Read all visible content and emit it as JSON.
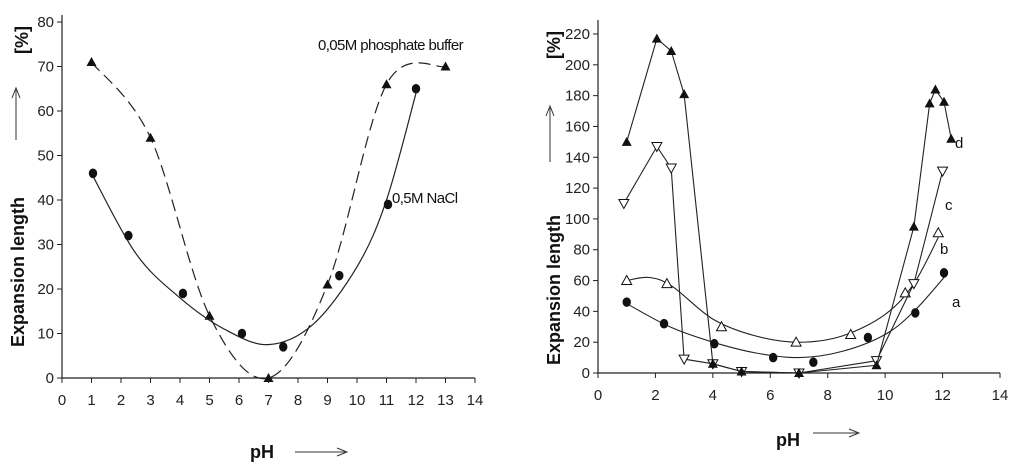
{
  "chart_data": [
    {
      "type": "line",
      "xlabel": "pH",
      "ylabel": "Expansion length",
      "yunit": "[%]",
      "xlim": [
        0,
        14
      ],
      "ylim": [
        0,
        80
      ],
      "xticks": [
        "0",
        "1",
        "2",
        "3",
        "4",
        "5",
        "6",
        "7",
        "8",
        "9",
        "10",
        "11",
        "12",
        "13",
        "14"
      ],
      "yticks": [
        "0",
        "10",
        "20",
        "30",
        "40",
        "50",
        "60",
        "70",
        "80"
      ],
      "grid": false,
      "series": [
        {
          "name": "0,05M phosphate buffer",
          "marker": "triangle-filled",
          "line_style": "dashed",
          "x": [
            1,
            3,
            5,
            7,
            9,
            11,
            13
          ],
          "y": [
            71,
            54,
            14,
            0,
            21,
            66,
            70
          ]
        },
        {
          "name": "0,5M NaCl",
          "marker": "circle-filled",
          "line_style": "solid",
          "x": [
            1.05,
            2.25,
            4.1,
            6.1,
            7.5,
            9.4,
            11.05,
            12.0
          ],
          "y": [
            46,
            32,
            19,
            10,
            7,
            23,
            39,
            65
          ]
        }
      ]
    },
    {
      "type": "line",
      "xlabel": "pH",
      "ylabel": "Expansion length",
      "yunit": "[%]",
      "xlim": [
        0,
        14
      ],
      "ylim": [
        0,
        220
      ],
      "xticks": [
        "0",
        "2",
        "4",
        "6",
        "8",
        "10",
        "12",
        "14"
      ],
      "yticks": [
        "0",
        "20",
        "40",
        "60",
        "80",
        "100",
        "120",
        "140",
        "160",
        "180",
        "200",
        "220"
      ],
      "grid": false,
      "series": [
        {
          "name": "a",
          "marker": "circle-filled",
          "x": [
            1.0,
            2.3,
            4.05,
            6.1,
            7.5,
            9.4,
            11.05,
            12.05
          ],
          "y": [
            46,
            32,
            19,
            10,
            7,
            23,
            39,
            65
          ]
        },
        {
          "name": "b",
          "marker": "triangle-open",
          "x": [
            1.0,
            2.4,
            4.3,
            6.9,
            8.8,
            10.7,
            11.85
          ],
          "y": [
            60,
            58,
            30,
            20,
            25,
            52,
            91
          ]
        },
        {
          "name": "c",
          "marker": "triangle-down-open",
          "x": [
            0.9,
            2.05,
            2.55,
            3.0,
            4.0,
            5.0,
            7.0,
            9.7,
            11.0,
            12.0
          ],
          "y": [
            110,
            147,
            133,
            9,
            6,
            1,
            0,
            8,
            58,
            131
          ]
        },
        {
          "name": "d",
          "marker": "triangle-filled",
          "x": [
            1.0,
            2.05,
            2.55,
            3.0,
            4.0,
            5.0,
            7.0,
            9.7,
            11.0,
            11.55,
            11.75,
            12.05,
            12.3
          ],
          "y": [
            150,
            217,
            209,
            181,
            6,
            1,
            0,
            5,
            95,
            175,
            184,
            176,
            152
          ]
        }
      ]
    }
  ],
  "annotations": {
    "left_phosphate": "0,05M phosphate buffer",
    "left_nacl": "0,5M NaCl"
  }
}
